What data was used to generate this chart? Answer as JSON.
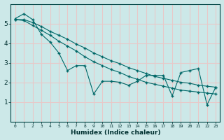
{
  "xlabel": "Humidex (Indice chaleur)",
  "bg_color": "#cce8e8",
  "grid_color": "#e8c8c8",
  "line_color": "#006868",
  "x": [
    0,
    1,
    2,
    3,
    4,
    5,
    6,
    7,
    8,
    9,
    10,
    11,
    12,
    13,
    14,
    15,
    16,
    17,
    18,
    19,
    20,
    21,
    22,
    23
  ],
  "series1": [
    5.25,
    5.5,
    5.2,
    4.45,
    4.05,
    3.5,
    2.6,
    2.85,
    2.85,
    1.4,
    2.05,
    2.05,
    2.0,
    1.85,
    2.05,
    2.35,
    2.35,
    2.35,
    1.3,
    2.5,
    2.6,
    2.7,
    0.85,
    1.75
  ],
  "series2": [
    5.2,
    5.15,
    4.9,
    4.65,
    4.4,
    4.1,
    3.85,
    3.6,
    3.3,
    3.05,
    2.85,
    2.65,
    2.5,
    2.3,
    2.15,
    2.0,
    1.9,
    1.8,
    1.7,
    1.6,
    1.55,
    1.5,
    1.45,
    1.4
  ],
  "series3": [
    5.2,
    5.2,
    5.05,
    4.85,
    4.6,
    4.4,
    4.2,
    3.95,
    3.75,
    3.5,
    3.3,
    3.1,
    2.95,
    2.75,
    2.6,
    2.45,
    2.3,
    2.2,
    2.1,
    2.0,
    1.95,
    1.85,
    1.8,
    1.75
  ],
  "ylim": [
    0,
    6
  ],
  "xlim": [
    -0.5,
    23.5
  ],
  "yticks": [
    1,
    2,
    3,
    4,
    5
  ],
  "xticks": [
    0,
    1,
    2,
    3,
    4,
    5,
    6,
    7,
    8,
    9,
    10,
    11,
    12,
    13,
    14,
    15,
    16,
    17,
    18,
    19,
    20,
    21,
    22,
    23
  ],
  "xtick_labels": [
    "0",
    "1",
    "2",
    "3",
    "4",
    "5",
    "6",
    "7",
    "8",
    "9",
    "10",
    "11",
    "12",
    "13",
    "14",
    "15",
    "16",
    "17",
    "18",
    "19",
    "20",
    "21",
    "22",
    "23"
  ]
}
